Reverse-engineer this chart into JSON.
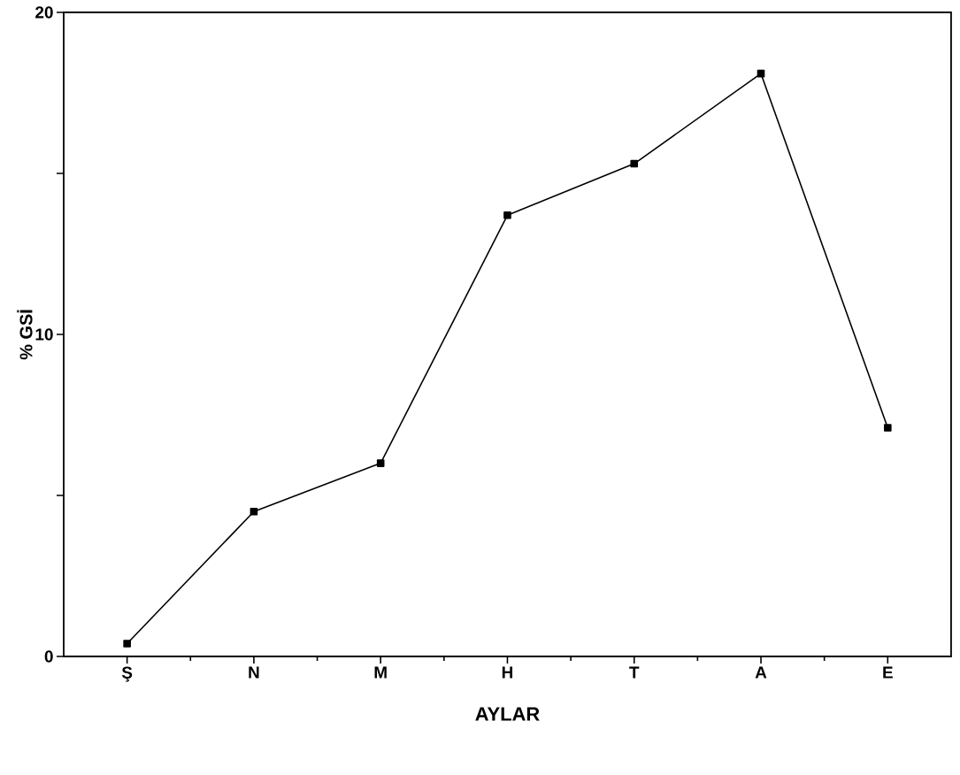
{
  "chart_data": {
    "type": "line",
    "xlabel": "AYLAR",
    "ylabel": "% GSİ",
    "categories": [
      "Ş",
      "N",
      "M",
      "H",
      "T",
      "A",
      "E"
    ],
    "values": [
      0.4,
      4.5,
      6.0,
      13.7,
      15.3,
      18.1,
      7.1
    ],
    "color": "#000000",
    "marker": "square",
    "line_style": "solid",
    "ylim": [
      0,
      20
    ],
    "yticks": [
      0,
      {
        "value": 5,
        "label": null
      },
      10,
      {
        "value": 15,
        "label": null
      },
      20
    ]
  }
}
